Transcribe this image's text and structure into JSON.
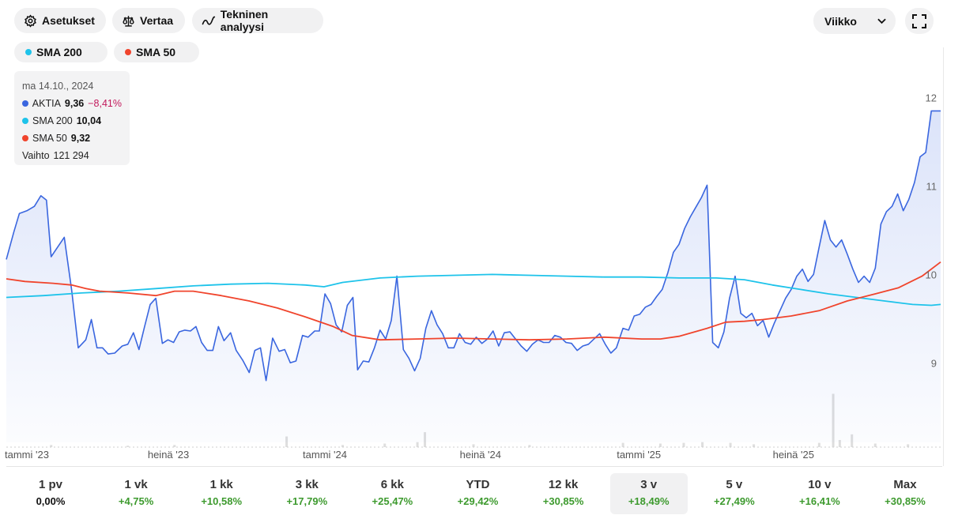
{
  "toolbar": {
    "settings_label": "Asetukset",
    "compare_label": "Vertaa",
    "technical_label": "Tekninen analyysi",
    "interval_value": "Viikko"
  },
  "indicators": [
    {
      "label": "SMA 200",
      "color": "#1ec3ea"
    },
    {
      "label": "SMA 50",
      "color": "#f0442c"
    }
  ],
  "tooltip": {
    "date": "ma 14.10., 2024",
    "rows": [
      {
        "name": "AKTIA",
        "value": "9,36",
        "change": "−8,41%",
        "color": "#3a66df"
      },
      {
        "name": "SMA 200",
        "value": "10,04",
        "color": "#1ec3ea"
      },
      {
        "name": "SMA 50",
        "value": "9,32",
        "color": "#f0442c"
      }
    ],
    "volume_label": "Vaihto",
    "volume_value": "121 294"
  },
  "periods": [
    {
      "label": "1 pv",
      "value": "0,00%",
      "kind": "zero"
    },
    {
      "label": "1 vk",
      "value": "+4,75%",
      "kind": "pos"
    },
    {
      "label": "1 kk",
      "value": "+10,58%",
      "kind": "pos"
    },
    {
      "label": "3 kk",
      "value": "+17,79%",
      "kind": "pos"
    },
    {
      "label": "6 kk",
      "value": "+25,47%",
      "kind": "pos"
    },
    {
      "label": "YTD",
      "value": "+29,42%",
      "kind": "pos"
    },
    {
      "label": "12 kk",
      "value": "+30,85%",
      "kind": "pos"
    },
    {
      "label": "3 v",
      "value": "+18,49%",
      "kind": "pos",
      "selected": true
    },
    {
      "label": "5 v",
      "value": "+27,49%",
      "kind": "pos"
    },
    {
      "label": "10 v",
      "value": "+16,41%",
      "kind": "pos"
    },
    {
      "label": "Max",
      "value": "+30,85%",
      "kind": "pos"
    }
  ],
  "chart_data": {
    "type": "line",
    "ylim": [
      8.1,
      12.3
    ],
    "yticks": [
      9,
      10,
      11,
      12
    ],
    "xlim": [
      0,
      1.0
    ],
    "xticks": [
      {
        "label": "tammi '23",
        "x": 0.0
      },
      {
        "label": "heinä '23",
        "x": 0.153
      },
      {
        "label": "tammi '24",
        "x": 0.319
      },
      {
        "label": "heinä '24",
        "x": 0.487
      },
      {
        "label": "tammi '25",
        "x": 0.655
      },
      {
        "label": "heinä '25",
        "x": 0.822
      }
    ],
    "series": [
      {
        "name": "AKTIA",
        "color": "#3a66df",
        "fill": true,
        "points": [
          [
            0.0,
            10.17
          ],
          [
            0.008,
            10.48
          ],
          [
            0.014,
            10.69
          ],
          [
            0.022,
            10.72
          ],
          [
            0.03,
            10.77
          ],
          [
            0.037,
            10.89
          ],
          [
            0.043,
            10.84
          ],
          [
            0.048,
            10.2
          ],
          [
            0.055,
            10.31
          ],
          [
            0.062,
            10.42
          ],
          [
            0.07,
            9.82
          ],
          [
            0.077,
            9.17
          ],
          [
            0.085,
            9.26
          ],
          [
            0.091,
            9.49
          ],
          [
            0.097,
            9.17
          ],
          [
            0.103,
            9.17
          ],
          [
            0.109,
            9.1
          ],
          [
            0.116,
            9.11
          ],
          [
            0.124,
            9.19
          ],
          [
            0.13,
            9.21
          ],
          [
            0.136,
            9.34
          ],
          [
            0.142,
            9.15
          ],
          [
            0.148,
            9.41
          ],
          [
            0.154,
            9.66
          ],
          [
            0.16,
            9.73
          ],
          [
            0.167,
            9.22
          ],
          [
            0.173,
            9.26
          ],
          [
            0.179,
            9.23
          ],
          [
            0.185,
            9.35
          ],
          [
            0.191,
            9.37
          ],
          [
            0.197,
            9.36
          ],
          [
            0.203,
            9.41
          ],
          [
            0.209,
            9.23
          ],
          [
            0.215,
            9.14
          ],
          [
            0.221,
            9.14
          ],
          [
            0.227,
            9.41
          ],
          [
            0.233,
            9.25
          ],
          [
            0.24,
            9.34
          ],
          [
            0.246,
            9.14
          ],
          [
            0.253,
            9.03
          ],
          [
            0.26,
            8.89
          ],
          [
            0.266,
            9.14
          ],
          [
            0.272,
            9.17
          ],
          [
            0.278,
            8.8
          ],
          [
            0.285,
            9.28
          ],
          [
            0.292,
            9.13
          ],
          [
            0.298,
            9.15
          ],
          [
            0.304,
            9.0
          ],
          [
            0.31,
            9.02
          ],
          [
            0.317,
            9.31
          ],
          [
            0.323,
            9.29
          ],
          [
            0.33,
            9.36
          ],
          [
            0.335,
            9.36
          ],
          [
            0.341,
            9.78
          ],
          [
            0.347,
            9.67
          ],
          [
            0.353,
            9.43
          ],
          [
            0.359,
            9.35
          ],
          [
            0.365,
            9.65
          ],
          [
            0.371,
            9.74
          ],
          [
            0.376,
            8.92
          ],
          [
            0.382,
            9.02
          ],
          [
            0.388,
            9.01
          ],
          [
            0.394,
            9.17
          ],
          [
            0.4,
            9.37
          ],
          [
            0.406,
            9.27
          ],
          [
            0.412,
            9.48
          ],
          [
            0.418,
            9.98
          ],
          [
            0.425,
            9.15
          ],
          [
            0.431,
            9.05
          ],
          [
            0.437,
            8.91
          ],
          [
            0.443,
            9.05
          ],
          [
            0.449,
            9.39
          ],
          [
            0.455,
            9.59
          ],
          [
            0.461,
            9.43
          ],
          [
            0.467,
            9.33
          ],
          [
            0.473,
            9.17
          ],
          [
            0.479,
            9.17
          ],
          [
            0.485,
            9.33
          ],
          [
            0.491,
            9.23
          ],
          [
            0.497,
            9.21
          ],
          [
            0.503,
            9.29
          ],
          [
            0.509,
            9.22
          ],
          [
            0.515,
            9.27
          ],
          [
            0.521,
            9.36
          ],
          [
            0.527,
            9.19
          ],
          [
            0.533,
            9.34
          ],
          [
            0.539,
            9.35
          ],
          [
            0.545,
            9.27
          ],
          [
            0.551,
            9.19
          ],
          [
            0.557,
            9.13
          ],
          [
            0.563,
            9.21
          ],
          [
            0.569,
            9.26
          ],
          [
            0.575,
            9.23
          ],
          [
            0.581,
            9.23
          ],
          [
            0.587,
            9.31
          ],
          [
            0.593,
            9.29
          ],
          [
            0.599,
            9.23
          ],
          [
            0.605,
            9.22
          ],
          [
            0.611,
            9.14
          ],
          [
            0.617,
            9.19
          ],
          [
            0.623,
            9.21
          ],
          [
            0.629,
            9.27
          ],
          [
            0.635,
            9.33
          ],
          [
            0.641,
            9.21
          ],
          [
            0.647,
            9.11
          ],
          [
            0.653,
            9.17
          ],
          [
            0.66,
            9.39
          ],
          [
            0.666,
            9.37
          ],
          [
            0.672,
            9.53
          ],
          [
            0.678,
            9.55
          ],
          [
            0.684,
            9.63
          ],
          [
            0.69,
            9.66
          ],
          [
            0.696,
            9.75
          ],
          [
            0.702,
            9.83
          ],
          [
            0.708,
            10.02
          ],
          [
            0.714,
            10.25
          ],
          [
            0.72,
            10.34
          ],
          [
            0.726,
            10.52
          ],
          [
            0.732,
            10.65
          ],
          [
            0.738,
            10.76
          ],
          [
            0.744,
            10.87
          ],
          [
            0.75,
            11.01
          ],
          [
            0.756,
            9.23
          ],
          [
            0.762,
            9.17
          ],
          [
            0.768,
            9.35
          ],
          [
            0.774,
            9.73
          ],
          [
            0.78,
            9.98
          ],
          [
            0.786,
            9.56
          ],
          [
            0.792,
            9.51
          ],
          [
            0.798,
            9.56
          ],
          [
            0.804,
            9.42
          ],
          [
            0.81,
            9.48
          ],
          [
            0.816,
            9.29
          ],
          [
            0.822,
            9.45
          ],
          [
            0.828,
            9.59
          ],
          [
            0.834,
            9.73
          ],
          [
            0.84,
            9.83
          ],
          [
            0.846,
            9.98
          ],
          [
            0.852,
            10.06
          ],
          [
            0.858,
            9.92
          ],
          [
            0.864,
            10.0
          ],
          [
            0.87,
            10.31
          ],
          [
            0.876,
            10.61
          ],
          [
            0.882,
            10.39
          ],
          [
            0.888,
            10.31
          ],
          [
            0.894,
            10.39
          ],
          [
            0.9,
            10.23
          ],
          [
            0.906,
            10.06
          ],
          [
            0.912,
            9.91
          ],
          [
            0.918,
            9.98
          ],
          [
            0.924,
            9.91
          ],
          [
            0.93,
            10.07
          ],
          [
            0.936,
            10.57
          ],
          [
            0.942,
            10.71
          ],
          [
            0.948,
            10.77
          ],
          [
            0.954,
            10.91
          ],
          [
            0.96,
            10.72
          ],
          [
            0.966,
            10.85
          ],
          [
            0.972,
            11.04
          ],
          [
            0.978,
            11.33
          ],
          [
            0.984,
            11.38
          ],
          [
            0.99,
            11.85
          ],
          [
            1.0,
            11.85
          ]
        ]
      },
      {
        "name": "SMA 200",
        "color": "#1ec3ea",
        "fill": false,
        "points": [
          [
            0.0,
            9.74
          ],
          [
            0.04,
            9.76
          ],
          [
            0.08,
            9.79
          ],
          [
            0.12,
            9.81
          ],
          [
            0.16,
            9.84
          ],
          [
            0.2,
            9.87
          ],
          [
            0.24,
            9.89
          ],
          [
            0.28,
            9.9
          ],
          [
            0.32,
            9.88
          ],
          [
            0.34,
            9.86
          ],
          [
            0.36,
            9.91
          ],
          [
            0.4,
            9.96
          ],
          [
            0.44,
            9.98
          ],
          [
            0.48,
            9.99
          ],
          [
            0.52,
            10.0
          ],
          [
            0.56,
            9.99
          ],
          [
            0.6,
            9.98
          ],
          [
            0.64,
            9.97
          ],
          [
            0.68,
            9.97
          ],
          [
            0.72,
            9.96
          ],
          [
            0.76,
            9.96
          ],
          [
            0.79,
            9.94
          ],
          [
            0.82,
            9.88
          ],
          [
            0.85,
            9.83
          ],
          [
            0.88,
            9.78
          ],
          [
            0.91,
            9.74
          ],
          [
            0.94,
            9.7
          ],
          [
            0.97,
            9.66
          ],
          [
            0.99,
            9.65
          ],
          [
            1.0,
            9.66
          ]
        ]
      },
      {
        "name": "SMA 50",
        "color": "#f0442c",
        "fill": false,
        "points": [
          [
            0.0,
            9.95
          ],
          [
            0.02,
            9.92
          ],
          [
            0.05,
            9.9
          ],
          [
            0.07,
            9.88
          ],
          [
            0.085,
            9.84
          ],
          [
            0.1,
            9.81
          ],
          [
            0.13,
            9.79
          ],
          [
            0.16,
            9.76
          ],
          [
            0.18,
            9.81
          ],
          [
            0.2,
            9.81
          ],
          [
            0.23,
            9.76
          ],
          [
            0.26,
            9.7
          ],
          [
            0.29,
            9.62
          ],
          [
            0.32,
            9.52
          ],
          [
            0.35,
            9.41
          ],
          [
            0.37,
            9.31
          ],
          [
            0.4,
            9.26
          ],
          [
            0.44,
            9.27
          ],
          [
            0.48,
            9.28
          ],
          [
            0.52,
            9.27
          ],
          [
            0.56,
            9.26
          ],
          [
            0.6,
            9.27
          ],
          [
            0.64,
            9.29
          ],
          [
            0.68,
            9.27
          ],
          [
            0.7,
            9.27
          ],
          [
            0.72,
            9.3
          ],
          [
            0.75,
            9.39
          ],
          [
            0.77,
            9.46
          ],
          [
            0.79,
            9.47
          ],
          [
            0.81,
            9.49
          ],
          [
            0.84,
            9.53
          ],
          [
            0.87,
            9.59
          ],
          [
            0.9,
            9.7
          ],
          [
            0.93,
            9.78
          ],
          [
            0.955,
            9.85
          ],
          [
            0.98,
            9.98
          ],
          [
            1.0,
            10.14
          ]
        ]
      }
    ],
    "volume": [
      [
        0.048,
        0.03
      ],
      [
        0.13,
        0.02
      ],
      [
        0.18,
        0.03
      ],
      [
        0.3,
        0.15
      ],
      [
        0.36,
        0.03
      ],
      [
        0.405,
        0.05
      ],
      [
        0.44,
        0.07
      ],
      [
        0.448,
        0.21
      ],
      [
        0.5,
        0.04
      ],
      [
        0.56,
        0.03
      ],
      [
        0.66,
        0.06
      ],
      [
        0.7,
        0.05
      ],
      [
        0.725,
        0.06
      ],
      [
        0.745,
        0.07
      ],
      [
        0.775,
        0.06
      ],
      [
        0.8,
        0.04
      ],
      [
        0.87,
        0.06
      ],
      [
        0.885,
        0.75
      ],
      [
        0.892,
        0.1
      ],
      [
        0.905,
        0.18
      ],
      [
        0.93,
        0.05
      ],
      [
        0.965,
        0.04
      ]
    ]
  }
}
